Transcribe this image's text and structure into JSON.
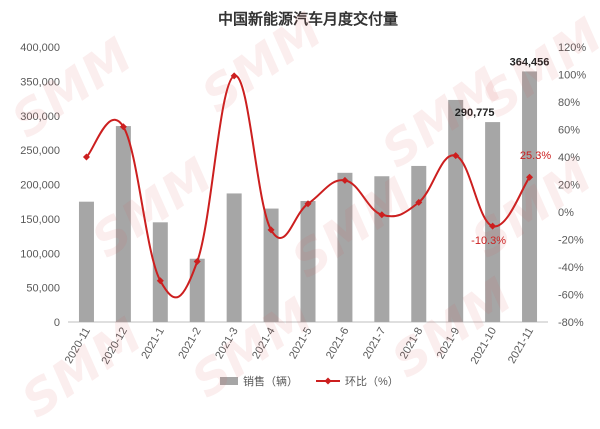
{
  "chart_data": {
    "type": "bar",
    "title": "中国新能源汽车月度交付量",
    "categories": [
      "2020-11",
      "2020-12",
      "2021-1",
      "2021-2",
      "2021-3",
      "2021-4",
      "2021-5",
      "2021-6",
      "2021-7",
      "2021-8",
      "2021-9",
      "2021-10",
      "2021-11"
    ],
    "series": [
      {
        "name": "销售（辆）",
        "type": "bar",
        "axis": "left",
        "color": "#a6a6a6",
        "values": [
          175000,
          285000,
          145000,
          92000,
          187000,
          165000,
          176000,
          217000,
          212000,
          227000,
          323000,
          290775,
          364456
        ]
      },
      {
        "name": "环比（%）",
        "type": "line",
        "axis": "right",
        "color": "#cc1f1f",
        "values": [
          40,
          62,
          -50,
          -36,
          99,
          -13,
          6,
          23,
          -2,
          7,
          41,
          -10.3,
          25.3
        ]
      }
    ],
    "y_left": {
      "min": 0,
      "max": 400000,
      "step": 50000,
      "tick_labels": [
        "0",
        "50,000",
        "100,000",
        "150,000",
        "200,000",
        "250,000",
        "300,000",
        "350,000",
        "400,000"
      ]
    },
    "y_right": {
      "min": -80,
      "max": 120,
      "step": 20,
      "tick_labels": [
        "-80%",
        "-60%",
        "-40%",
        "-20%",
        "0%",
        "20%",
        "40%",
        "60%",
        "80%",
        "100%",
        "120%"
      ]
    },
    "data_labels": [
      {
        "series": 0,
        "index": 11,
        "text": "290,775"
      },
      {
        "series": 0,
        "index": 12,
        "text": "364,456"
      },
      {
        "series": 1,
        "index": 11,
        "text": "-10.3%"
      },
      {
        "series": 1,
        "index": 12,
        "text": "25.3%"
      }
    ],
    "legend": {
      "position": "bottom",
      "entries": [
        "销售（辆）",
        "环比（%）"
      ]
    },
    "grid": false
  },
  "watermark": "SMM"
}
